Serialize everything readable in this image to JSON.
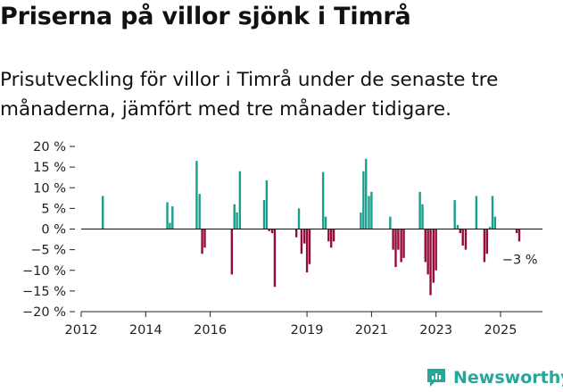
{
  "header": {
    "title": "Priserna på villor sjönk i Timrå",
    "subtitle": "Prisutveckling för villor i Timrå under de senaste tre månaderna, jämfört med tre månader tidigare."
  },
  "brand": {
    "name": "Newsworthy",
    "logo_icon": "newsworthy-logo-icon"
  },
  "colors": {
    "positive": "#1a9e8d",
    "negative": "#960a3c",
    "brand": "#27a69a",
    "zero_line": "#111111"
  },
  "chart_data": {
    "type": "bar",
    "title": "Priserna på villor sjönk i Timrå",
    "subtitle": "Prisutveckling för villor i Timrå under de senaste tre månaderna, jämfört med tre månader tidigare.",
    "xlabel": "",
    "ylabel": "",
    "x_unit": "year",
    "xlim": [
      2012,
      2026.3
    ],
    "ylim": [
      -20,
      20
    ],
    "y_ticks": [
      {
        "value": 20,
        "label": "20 %"
      },
      {
        "value": 15,
        "label": "15 %"
      },
      {
        "value": 10,
        "label": "10 %"
      },
      {
        "value": 5,
        "label": "5 %"
      },
      {
        "value": 0,
        "label": "0 %"
      },
      {
        "value": -5,
        "label": "−5 %"
      },
      {
        "value": -10,
        "label": "−10 %"
      },
      {
        "value": -15,
        "label": "−15 %"
      },
      {
        "value": -20,
        "label": "−20 %"
      }
    ],
    "x_ticks": [
      {
        "value": 2012,
        "label": "2012"
      },
      {
        "value": 2014,
        "label": "2014"
      },
      {
        "value": 2016,
        "label": "2016"
      },
      {
        "value": 2019,
        "label": "2019"
      },
      {
        "value": 2021,
        "label": "2021"
      },
      {
        "value": 2023,
        "label": "2023"
      },
      {
        "value": 2025,
        "label": "2025"
      }
    ],
    "grid": false,
    "legend": "none",
    "annotation": {
      "text": "−3 %",
      "x": 2025.6,
      "y": -3
    },
    "series": [
      {
        "values": [
          {
            "x": 2012.67,
            "y": 8
          },
          {
            "x": 2014.67,
            "y": 6.5
          },
          {
            "x": 2014.75,
            "y": 1.5
          },
          {
            "x": 2014.83,
            "y": 5.5
          },
          {
            "x": 2015.58,
            "y": 16.5
          },
          {
            "x": 2015.67,
            "y": 8.5
          },
          {
            "x": 2015.75,
            "y": -6
          },
          {
            "x": 2015.83,
            "y": -4.5
          },
          {
            "x": 2016.67,
            "y": -11
          },
          {
            "x": 2016.75,
            "y": 6
          },
          {
            "x": 2016.83,
            "y": 4
          },
          {
            "x": 2016.92,
            "y": 14
          },
          {
            "x": 2017.67,
            "y": 7
          },
          {
            "x": 2017.75,
            "y": 11.8
          },
          {
            "x": 2017.83,
            "y": -0.5
          },
          {
            "x": 2017.92,
            "y": -1
          },
          {
            "x": 2018.0,
            "y": -14
          },
          {
            "x": 2018.67,
            "y": -2
          },
          {
            "x": 2018.75,
            "y": 5
          },
          {
            "x": 2018.83,
            "y": -6
          },
          {
            "x": 2018.92,
            "y": -3.5
          },
          {
            "x": 2019.0,
            "y": -10.5
          },
          {
            "x": 2019.08,
            "y": -8.5
          },
          {
            "x": 2019.5,
            "y": 13.8
          },
          {
            "x": 2019.58,
            "y": 3
          },
          {
            "x": 2019.67,
            "y": -3
          },
          {
            "x": 2019.75,
            "y": -4.5
          },
          {
            "x": 2019.83,
            "y": -3
          },
          {
            "x": 2020.67,
            "y": 4
          },
          {
            "x": 2020.75,
            "y": 14
          },
          {
            "x": 2020.83,
            "y": 17
          },
          {
            "x": 2020.92,
            "y": 8
          },
          {
            "x": 2021.0,
            "y": 9
          },
          {
            "x": 2021.58,
            "y": 3
          },
          {
            "x": 2021.67,
            "y": -5
          },
          {
            "x": 2021.75,
            "y": -9.2
          },
          {
            "x": 2021.83,
            "y": -5
          },
          {
            "x": 2021.92,
            "y": -8
          },
          {
            "x": 2022.0,
            "y": -7
          },
          {
            "x": 2022.5,
            "y": 9
          },
          {
            "x": 2022.58,
            "y": 6
          },
          {
            "x": 2022.67,
            "y": -8
          },
          {
            "x": 2022.75,
            "y": -11
          },
          {
            "x": 2022.83,
            "y": -16
          },
          {
            "x": 2022.92,
            "y": -13
          },
          {
            "x": 2023.0,
            "y": -10
          },
          {
            "x": 2023.58,
            "y": 7
          },
          {
            "x": 2023.67,
            "y": 1
          },
          {
            "x": 2023.75,
            "y": -1
          },
          {
            "x": 2023.83,
            "y": -4
          },
          {
            "x": 2023.92,
            "y": -5
          },
          {
            "x": 2024.25,
            "y": 8
          },
          {
            "x": 2024.5,
            "y": -8
          },
          {
            "x": 2024.58,
            "y": -6
          },
          {
            "x": 2024.67,
            "y": 0.5
          },
          {
            "x": 2024.75,
            "y": 8
          },
          {
            "x": 2024.83,
            "y": 3
          },
          {
            "x": 2025.5,
            "y": -1
          },
          {
            "x": 2025.58,
            "y": -3
          }
        ]
      }
    ]
  }
}
